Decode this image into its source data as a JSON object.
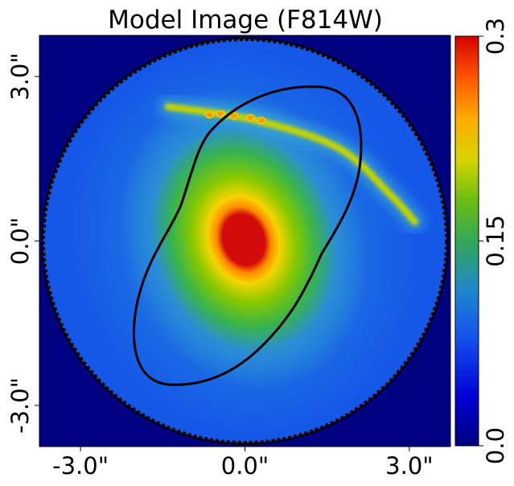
{
  "chart_data": {
    "type": "heatmap",
    "title": "Model Image (F814W)",
    "x_ticks": [
      {
        "value": -3.0,
        "label": "-3.0\""
      },
      {
        "value": 0.0,
        "label": "0.0\""
      },
      {
        "value": 3.0,
        "label": "3.0\""
      }
    ],
    "y_ticks": [
      {
        "value": 3.0,
        "label": "3.0\""
      },
      {
        "value": 0.0,
        "label": "0.0\""
      },
      {
        "value": -3.0,
        "label": "-3.0\""
      }
    ],
    "xlim": [
      -3.75,
      3.75
    ],
    "ylim": [
      -3.75,
      3.75
    ],
    "colorbar": {
      "min": 0.0,
      "max": 0.3,
      "ticks": [
        {
          "value": 0.0,
          "label": "0.0"
        },
        {
          "value": 0.15,
          "label": "0.15"
        },
        {
          "value": 0.3,
          "label": "0.3"
        }
      ],
      "colormap": "jet-like"
    },
    "mask_radius_arcsec": 3.7,
    "galaxy": {
      "center": [
        0.0,
        0.0
      ],
      "peak_value": 0.3
    },
    "arc": {
      "points": [
        [
          -1.4,
          2.45
        ],
        [
          0.2,
          2.2
        ],
        [
          1.7,
          1.7
        ],
        [
          2.6,
          0.9
        ],
        [
          3.1,
          0.35
        ]
      ]
    },
    "caustic": {
      "color": "#000000"
    },
    "colors": {
      "background": "#000080",
      "mask_edge": "#000000"
    }
  }
}
